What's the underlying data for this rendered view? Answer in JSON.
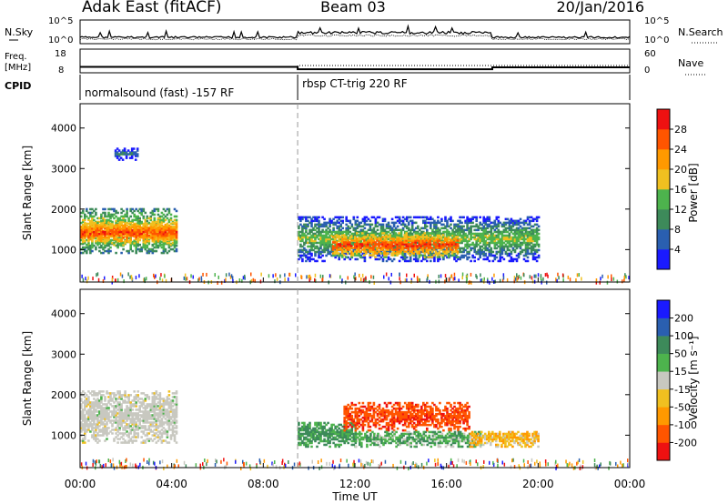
{
  "header": {
    "station": "Adak East (fitACF)",
    "beam": "Beam 03",
    "date": "20/Jan/2016"
  },
  "strips": {
    "nsky_label": "N.Sky",
    "nsearch_label": "N.Search",
    "noise_ticks": [
      "10^5",
      "10^0"
    ],
    "freq_label_1": "Freq.",
    "freq_label_2": "[MHz]",
    "freq_ticks": [
      "18",
      "8"
    ],
    "nave_label": "Nave",
    "nave_ticks": [
      "60",
      "0"
    ],
    "cpid_label": "CPID",
    "cpid_segments": [
      {
        "start_hour": 0.0,
        "end_hour": 9.5,
        "label": "normalsound (fast) -157 RF"
      },
      {
        "start_hour": 9.5,
        "end_hour": 24.0,
        "label": "rbsp CT-trig 220 RF"
      }
    ],
    "freq_steps": [
      {
        "start_hour": 0.0,
        "end_hour": 9.5,
        "freq_mhz": 10.5
      },
      {
        "start_hour": 9.5,
        "end_hour": 18.0,
        "freq_mhz": 9.5
      },
      {
        "start_hour": 18.0,
        "end_hour": 24.0,
        "freq_mhz": 10.3
      }
    ]
  },
  "axes": {
    "xlabel": "Time UT",
    "x_ticks": [
      "00:00",
      "04:00",
      "08:00",
      "12:00",
      "16:00",
      "20:00",
      "00:00"
    ],
    "ylabel": "Slant Range [km]",
    "y_ticks": [
      "1000",
      "2000",
      "3000",
      "4000"
    ]
  },
  "colors": {
    "power": [
      "#1a1aff",
      "#2a5fb0",
      "#3d8a5a",
      "#4db34d",
      "#f0c020",
      "#ff9900",
      "#ff5500",
      "#ee1111"
    ],
    "velocity": [
      "#ee1111",
      "#ff5500",
      "#ff9900",
      "#f0c020",
      "#c8c8c0",
      "#4db34d",
      "#3d8a5a",
      "#2a5fb0",
      "#1a1aff"
    ],
    "ground_scatter": "#c8c8c0"
  },
  "chart_data": [
    {
      "type": "heatmap",
      "panel": "power",
      "ylabel": "Slant Range [km]",
      "xlabel": "Time UT",
      "xlim": [
        0,
        24
      ],
      "ylim": [
        200,
        4600
      ],
      "colorbar_label": "Power [dB]",
      "colorbar_ticks": [
        "4",
        "8",
        "12",
        "16",
        "20",
        "24",
        "28"
      ],
      "regions": [
        {
          "t_start": 0.0,
          "t_end": 4.2,
          "range_low": 900,
          "range_high": 2000,
          "value_db": 22
        },
        {
          "t_start": 0.0,
          "t_end": 4.2,
          "range_low": 1100,
          "range_high": 1700,
          "value_db": 28
        },
        {
          "t_start": 1.5,
          "t_end": 2.5,
          "range_low": 3200,
          "range_high": 3500,
          "value_db": 10
        },
        {
          "t_start": 9.5,
          "t_end": 20.0,
          "range_low": 700,
          "range_high": 1800,
          "value_db": 16
        },
        {
          "t_start": 11.0,
          "t_end": 16.5,
          "range_low": 800,
          "range_high": 1400,
          "value_db": 28
        }
      ]
    },
    {
      "type": "heatmap",
      "panel": "velocity",
      "ylabel": "Slant Range [km]",
      "xlabel": "Time UT",
      "xlim": [
        0,
        24
      ],
      "ylim": [
        200,
        4600
      ],
      "colorbar_label": "Velocity [m s⁻¹]",
      "colorbar_ticks": [
        "200",
        "100",
        "50",
        "15",
        "-15",
        "-50",
        "-100",
        "-200"
      ],
      "regions": [
        {
          "t_start": 0.0,
          "t_end": 4.2,
          "range_low": 800,
          "range_high": 2100,
          "value_ms": 0,
          "ground_scatter": true
        },
        {
          "t_start": 9.5,
          "t_end": 12.0,
          "range_low": 700,
          "range_high": 1300,
          "value_ms": 60
        },
        {
          "t_start": 11.5,
          "t_end": 17.0,
          "range_low": 1100,
          "range_high": 1800,
          "value_ms": -180
        },
        {
          "t_start": 12.0,
          "t_end": 17.5,
          "range_low": 700,
          "range_high": 1100,
          "value_ms": 40
        },
        {
          "t_start": 17.0,
          "t_end": 20.0,
          "range_low": 700,
          "range_high": 1100,
          "value_ms": -40
        }
      ]
    }
  ]
}
